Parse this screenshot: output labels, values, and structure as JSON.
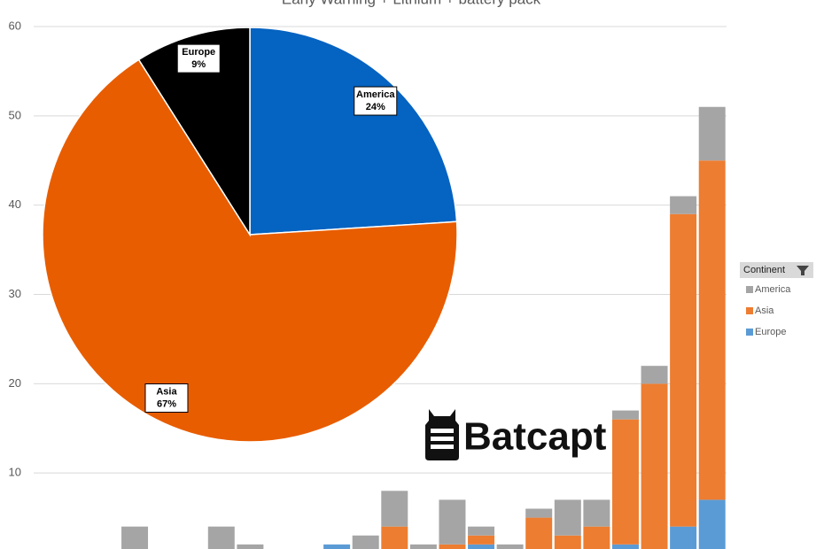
{
  "chart_data": [
    {
      "type": "bar",
      "stacked": true,
      "title": "Early Warning  +  Lithium  +  battery pack",
      "categories": [
        null,
        null,
        null,
        null,
        null,
        null,
        null,
        null,
        null,
        null,
        null,
        null,
        null,
        null,
        null,
        null,
        null,
        null,
        null,
        null,
        null,
        null,
        null,
        null
      ],
      "series": [
        {
          "name": "America",
          "color": "#a5a5a5",
          "values": [
            0,
            0,
            0,
            4,
            0,
            0,
            4,
            2,
            0,
            0,
            0,
            3,
            4,
            2,
            5,
            1,
            2,
            1,
            4,
            3,
            1,
            2,
            2,
            6
          ]
        },
        {
          "name": "Asia",
          "color": "#ed7d31",
          "values": [
            0,
            0,
            0,
            0,
            0,
            0,
            0,
            0,
            0,
            0,
            0,
            0,
            4,
            0,
            2,
            1,
            0,
            5,
            3,
            4,
            14,
            20,
            35,
            38
          ]
        },
        {
          "name": "Europe",
          "color": "#5b9bd5",
          "values": [
            0,
            0,
            0,
            0,
            0,
            0,
            0,
            0,
            0,
            0,
            2,
            0,
            0,
            0,
            0,
            2,
            0,
            0,
            0,
            0,
            2,
            0,
            4,
            7
          ]
        }
      ],
      "ylim": [
        0,
        60
      ],
      "yticks": [
        10,
        20,
        30,
        40,
        50,
        60
      ],
      "grid": true,
      "legend_title": "Continent",
      "legend": "right"
    },
    {
      "type": "pie",
      "categories": [
        "America",
        "Asia",
        "Europe"
      ],
      "values": [
        24,
        67,
        9
      ],
      "value_labels": [
        "24%",
        "67%",
        "9%"
      ],
      "colors": [
        "#0563c1",
        "#e85d00",
        "#000000"
      ]
    }
  ],
  "watermark": "Batcapt"
}
